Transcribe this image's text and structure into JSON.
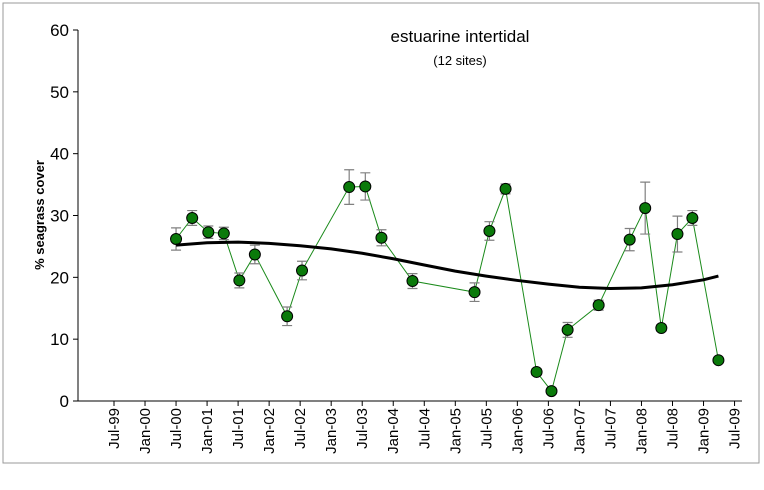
{
  "chart_data": {
    "type": "line",
    "title": "estuarine intertidal",
    "subtitle": "(12 sites)",
    "y_label": "% seagrass cover",
    "xlim": [
      1998.92,
      2009.62
    ],
    "xticks": [
      {
        "value": 1999.5,
        "label": "Jul-99"
      },
      {
        "value": 2000.0,
        "label": "Jan-00"
      },
      {
        "value": 2000.5,
        "label": "Jul-00"
      },
      {
        "value": 2001.0,
        "label": "Jan-01"
      },
      {
        "value": 2001.5,
        "label": "Jul-01"
      },
      {
        "value": 2002.0,
        "label": "Jan-02"
      },
      {
        "value": 2002.5,
        "label": "Jul-02"
      },
      {
        "value": 2003.0,
        "label": "Jan-03"
      },
      {
        "value": 2003.5,
        "label": "Jul-03"
      },
      {
        "value": 2004.0,
        "label": "Jan-04"
      },
      {
        "value": 2004.5,
        "label": "Jul-04"
      },
      {
        "value": 2005.0,
        "label": "Jan-05"
      },
      {
        "value": 2005.5,
        "label": "Jul-05"
      },
      {
        "value": 2006.0,
        "label": "Jan-06"
      },
      {
        "value": 2006.5,
        "label": "Jul-06"
      },
      {
        "value": 2007.0,
        "label": "Jan-07"
      },
      {
        "value": 2007.5,
        "label": "Jul-07"
      },
      {
        "value": 2008.0,
        "label": "Jan-08"
      },
      {
        "value": 2008.5,
        "label": "Jul-08"
      },
      {
        "value": 2009.0,
        "label": "Jan-09"
      },
      {
        "value": 2009.5,
        "label": "Jul-09"
      }
    ],
    "ylim": [
      0,
      60
    ],
    "yticks": [
      0,
      10,
      20,
      30,
      40,
      50,
      60
    ],
    "series": [
      {
        "color": "#1a8a1a",
        "marker_color": "#0a7a0a",
        "x": [
          2000.5,
          2000.76,
          2001.02,
          2001.27,
          2001.52,
          2001.77,
          2002.29,
          2002.53,
          2003.29,
          2003.55,
          2003.81,
          2004.31,
          2005.31,
          2005.55,
          2005.81,
          2006.31,
          2006.55,
          2006.81,
          2007.31,
          2007.81,
          2008.06,
          2008.32,
          2008.58,
          2008.82,
          2009.24
        ],
        "values": [
          26.2,
          29.6,
          27.3,
          27.1,
          19.5,
          23.7,
          13.7,
          21.1,
          34.6,
          34.7,
          26.4,
          19.4,
          17.6,
          27.5,
          34.3,
          4.7,
          1.6,
          11.5,
          15.5,
          26.1,
          31.2,
          11.8,
          27.0,
          29.6,
          6.6
        ],
        "errors": [
          1.8,
          1.2,
          1.0,
          1.0,
          1.2,
          1.5,
          1.5,
          1.5,
          2.8,
          2.2,
          1.3,
          1.2,
          1.5,
          1.5,
          0.8,
          0.5,
          0.5,
          1.2,
          0.8,
          1.8,
          4.2,
          0.5,
          2.9,
          1.2,
          0.3
        ]
      },
      {
        "color": "#000000",
        "x": [
          2000.5,
          2001.0,
          2001.5,
          2002.0,
          2002.5,
          2003.0,
          2003.5,
          2004.0,
          2004.5,
          2005.0,
          2005.5,
          2006.0,
          2006.5,
          2007.0,
          2007.5,
          2008.0,
          2008.5,
          2009.0,
          2009.24
        ],
        "values": [
          25.2,
          25.6,
          25.7,
          25.5,
          25.1,
          24.6,
          23.9,
          23.0,
          22.0,
          21.0,
          20.2,
          19.5,
          18.9,
          18.4,
          18.2,
          18.3,
          18.8,
          19.6,
          20.2
        ]
      }
    ]
  }
}
